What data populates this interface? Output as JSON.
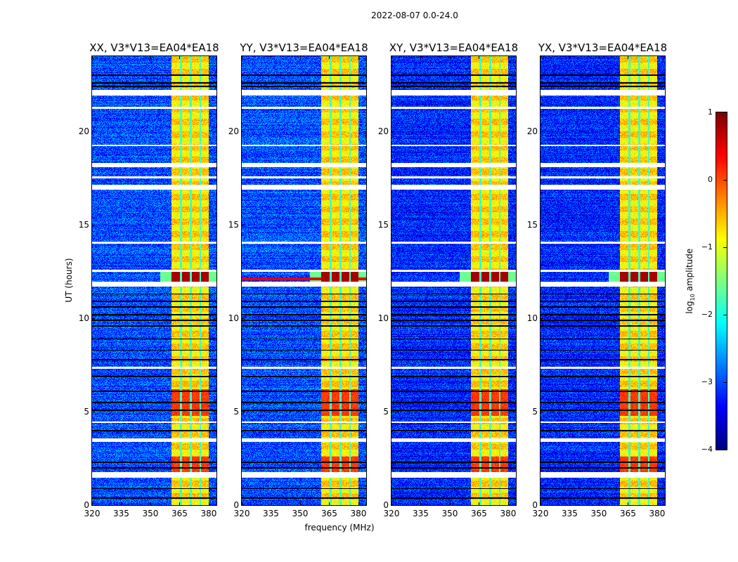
{
  "figure_title": "2022-08-07 0.0-24.0",
  "chart_data": {
    "type": "heatmap",
    "title": "2022-08-07 0.0-24.0",
    "xlabel": "frequency (MHz)",
    "ylabel": "UT (hours)",
    "xlim": [
      320,
      384
    ],
    "ylim": [
      0,
      24
    ],
    "xticks": [
      320,
      335,
      350,
      365,
      380
    ],
    "yticks": [
      0,
      5,
      10,
      15,
      20
    ],
    "panels": [
      {
        "title": "XX, V3*V13=EA04*EA18"
      },
      {
        "title": "YY, V3*V13=EA04*EA18"
      },
      {
        "title": "XY, V3*V13=EA04*EA18"
      },
      {
        "title": "YX, V3*V13=EA04*EA18"
      }
    ],
    "colorbar": {
      "label_main": "log",
      "label_sub": "10",
      "label_rest": " amplitude",
      "range": [
        -4,
        1
      ],
      "ticks": [
        1,
        0,
        -1,
        -2,
        -3,
        -4
      ],
      "tick_labels": [
        "1",
        "0",
        "−1",
        "−2",
        "−3",
        "−4"
      ],
      "colormap": "jet"
    },
    "background_level_log10": -3,
    "rfi_band_mhz": [
      360.5,
      380.0
    ],
    "rfi_band_level_log10": -0.8,
    "rfi_gap_channels_mhz": [
      365.5,
      370.5,
      375.5
    ],
    "strong_rfi_hours": [
      [
        11.9,
        12.5
      ],
      [
        1.8,
        2.6
      ],
      [
        4.8,
        6.2
      ]
    ],
    "flagged_white_hours": [
      [
        1.5,
        1.8
      ],
      [
        3.4,
        3.6
      ],
      [
        4.4,
        4.5
      ],
      [
        7.3,
        7.4
      ],
      [
        11.7,
        11.95
      ],
      [
        12.5,
        12.6
      ],
      [
        14.0,
        14.1
      ],
      [
        16.9,
        17.15
      ],
      [
        17.5,
        17.6
      ],
      [
        18.1,
        18.3
      ],
      [
        19.2,
        19.3
      ],
      [
        21.2,
        21.3
      ],
      [
        21.9,
        22.2
      ]
    ],
    "dark_lines_hours": [
      0.4,
      0.9,
      2.0,
      2.3,
      4.0,
      5.1,
      5.5,
      6.1,
      6.9,
      7.8,
      8.3,
      8.9,
      9.6,
      9.9,
      10.2,
      10.6,
      10.9,
      11.3,
      22.4,
      22.6,
      23.0
    ]
  }
}
